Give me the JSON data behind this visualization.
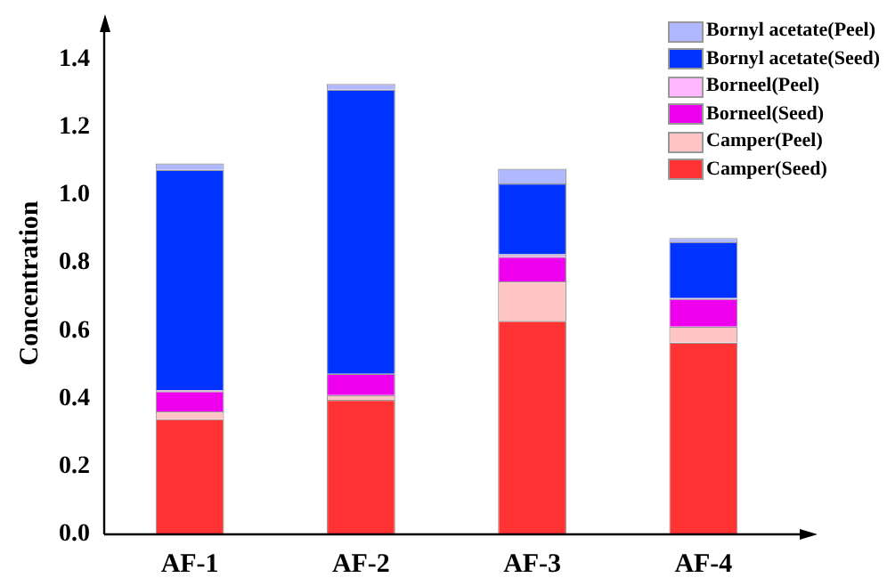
{
  "chart_data": {
    "type": "bar",
    "stacked": true,
    "ylabel": "Concentration",
    "categories": [
      "AF-1",
      "AF-2",
      "AF-3",
      "AF-4"
    ],
    "ylim": [
      0,
      1.48
    ],
    "yticks": [
      {
        "value": 0,
        "label": "0.0"
      },
      {
        "value": 0.2,
        "label": "0.2"
      },
      {
        "value": 0.4,
        "label": "0.4"
      },
      {
        "value": 0.6,
        "label": "0.6"
      },
      {
        "value": 0.8,
        "label": "0.8"
      },
      {
        "value": 1.0,
        "label": "1.0"
      },
      {
        "value": 1.2,
        "label": "1.2"
      },
      {
        "value": 1.4,
        "label": "1.4"
      }
    ],
    "grid": false,
    "legend": "top right",
    "series": [
      {
        "name": "Camper(Seed)",
        "color": "#ff3333",
        "values": [
          0.34,
          0.396,
          0.629,
          0.565
        ]
      },
      {
        "name": "Camper(Peel)",
        "color": "#ffc4c4",
        "values": [
          0.022,
          0.014,
          0.116,
          0.047
        ]
      },
      {
        "name": "Borneel(Seed)",
        "color": "#ee00ee",
        "values": [
          0.06,
          0.063,
          0.073,
          0.082
        ]
      },
      {
        "name": "Borneel(Peel)",
        "color": "#ffb8ff",
        "values": [
          0.003,
          null,
          0.007,
          0.002
        ]
      },
      {
        "name": "Bornyl acetate(Seed)",
        "color": "#0033ff",
        "values": [
          0.649,
          0.837,
          0.209,
          0.165
        ]
      },
      {
        "name": "Bornyl acetate(Peel)",
        "color": "#b0b8ff",
        "values": [
          0.019,
          0.017,
          0.043,
          0.012
        ]
      }
    ]
  }
}
